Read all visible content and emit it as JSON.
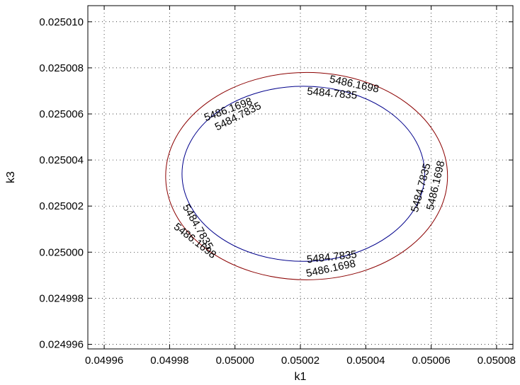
{
  "chart_data": {
    "type": "line",
    "title": "",
    "xlabel": "k1",
    "ylabel": "k3",
    "xlim": [
      0.049955,
      0.050085
    ],
    "ylim": [
      0.0249958,
      0.0250107
    ],
    "grid": true,
    "x_ticks": [
      {
        "value": 0.04996,
        "label": "0.04996"
      },
      {
        "value": 0.04998,
        "label": "0.04998"
      },
      {
        "value": 0.05,
        "label": "0.05000"
      },
      {
        "value": 0.05002,
        "label": "0.05002"
      },
      {
        "value": 0.05004,
        "label": "0.05004"
      },
      {
        "value": 0.05006,
        "label": "0.05006"
      },
      {
        "value": 0.05008,
        "label": "0.05008"
      }
    ],
    "y_ticks": [
      {
        "value": 0.024996,
        "label": "0.024996"
      },
      {
        "value": 0.024998,
        "label": "0.024998"
      },
      {
        "value": 0.025,
        "label": "0.025000"
      },
      {
        "value": 0.025002,
        "label": "0.025002"
      },
      {
        "value": 0.025004,
        "label": "0.025004"
      },
      {
        "value": 0.025006,
        "label": "0.025006"
      },
      {
        "value": 0.025008,
        "label": "0.025008"
      },
      {
        "value": 0.02501,
        "label": "0.025010"
      }
    ],
    "series": [
      {
        "level": "5484.7835",
        "color": "#00008b",
        "ellipse": {
          "cx": 0.0500209,
          "cy": 0.0250034,
          "rx": 3.71e-05,
          "ry": 3.8e-06
        },
        "labels": [
          {
            "x": 0.0500009,
            "y": 0.0250059,
            "angle": -27
          },
          {
            "x": 0.0500297,
            "y": 0.0250069,
            "angle": 5
          },
          {
            "x": 0.0500568,
            "y": 0.0250028,
            "angle": -75
          },
          {
            "x": 0.0500296,
            "y": 0.0249998,
            "angle": -6
          },
          {
            "x": 0.0499887,
            "y": 0.0250011,
            "angle": 60
          }
        ]
      },
      {
        "level": "5486.1698",
        "color": "#8b0000",
        "ellipse": {
          "cx": 0.0500219,
          "cy": 0.0250033,
          "rx": 4.31e-05,
          "ry": 4.5e-06
        },
        "labels": [
          {
            "x": 0.0499979,
            "y": 0.0250062,
            "angle": -20
          },
          {
            "x": 0.0500365,
            "y": 0.0250073,
            "angle": 12
          },
          {
            "x": 0.0500613,
            "y": 0.0250029,
            "angle": -77
          },
          {
            "x": 0.0500293,
            "y": 0.0249993,
            "angle": -12
          },
          {
            "x": 0.0499878,
            "y": 0.0250005,
            "angle": 38
          }
        ]
      }
    ]
  }
}
